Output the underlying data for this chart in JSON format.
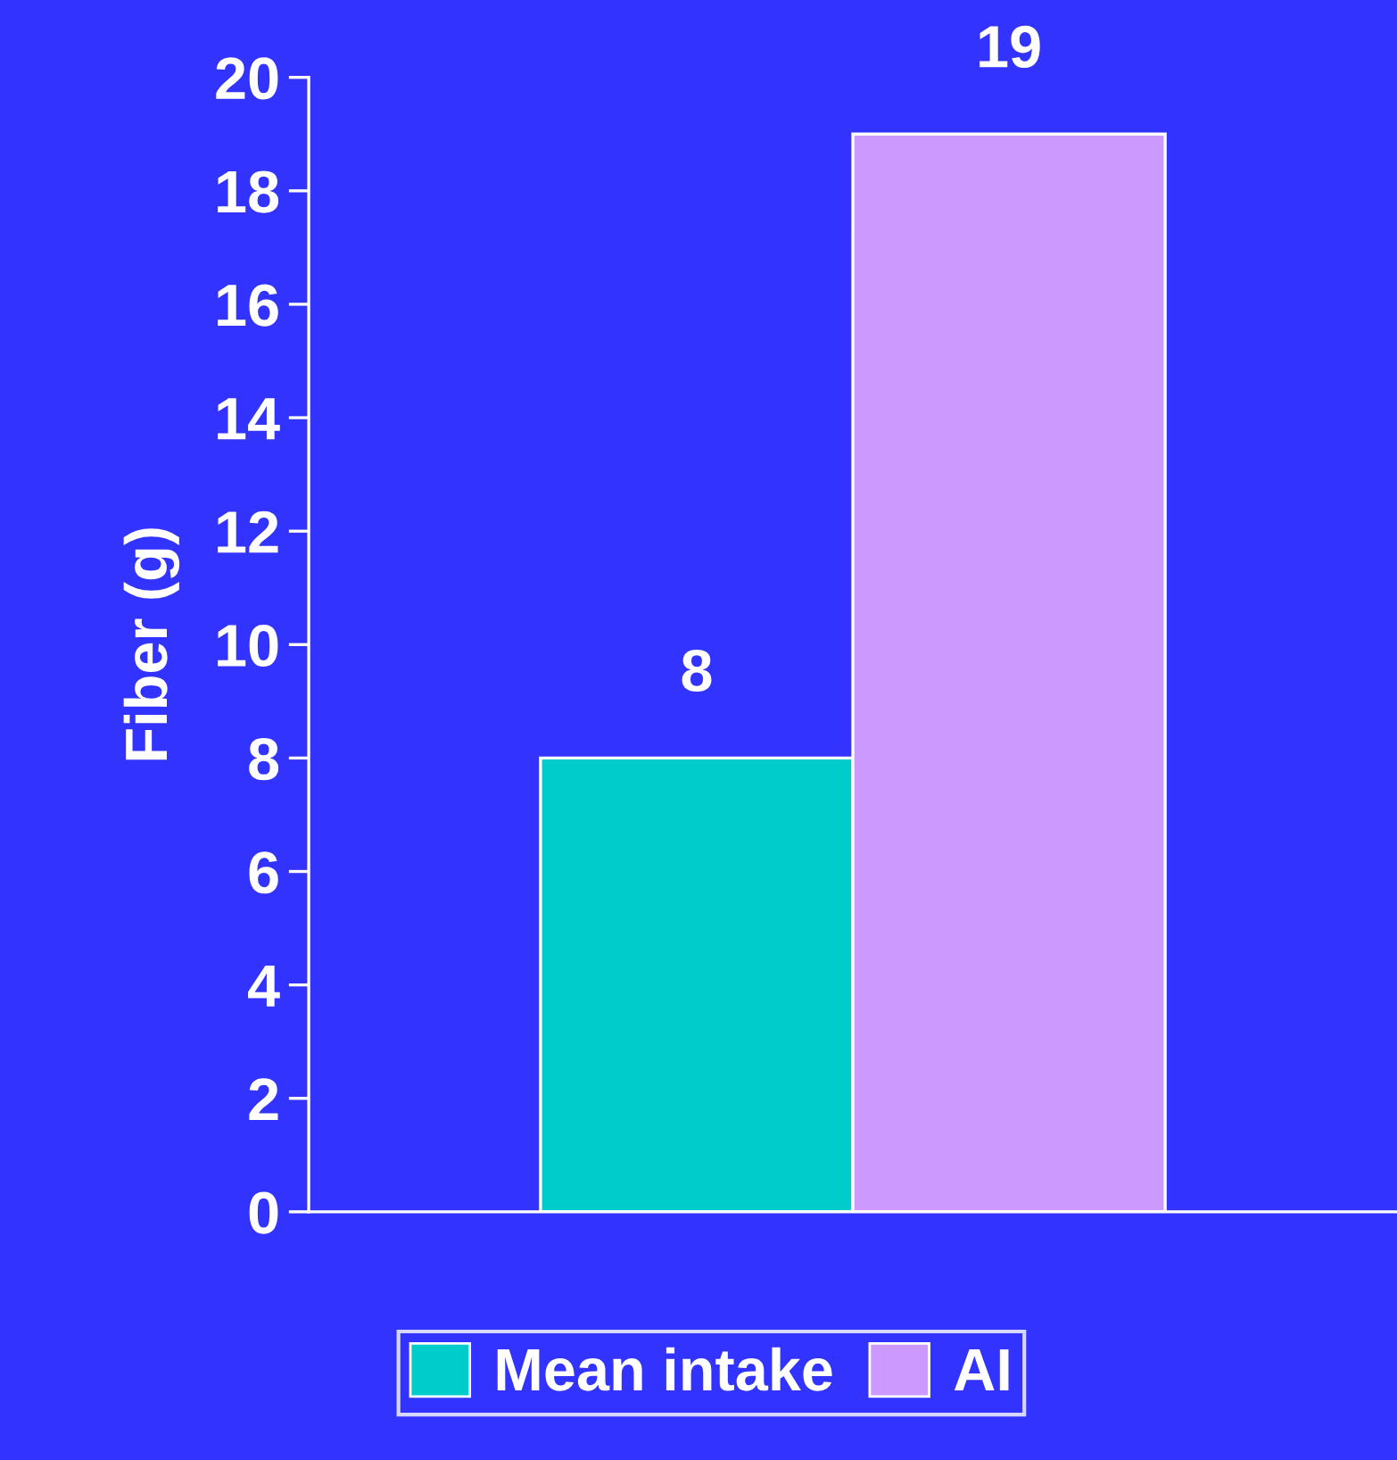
{
  "chart_data": {
    "type": "bar",
    "ylabel": "Fiber (g)",
    "categories": [
      null
    ],
    "series": [
      {
        "name": "Mean intake",
        "color": "#00cccc",
        "values": [
          8
        ]
      },
      {
        "name": "AI",
        "color": "#cc99ff",
        "values": [
          19
        ]
      }
    ],
    "ylim": [
      0,
      20
    ],
    "yticks": [
      0,
      2,
      4,
      6,
      8,
      10,
      12,
      14,
      16,
      18,
      20
    ],
    "tick_labels": "y",
    "data_labels": true,
    "grid": false,
    "legend": "bottom"
  }
}
